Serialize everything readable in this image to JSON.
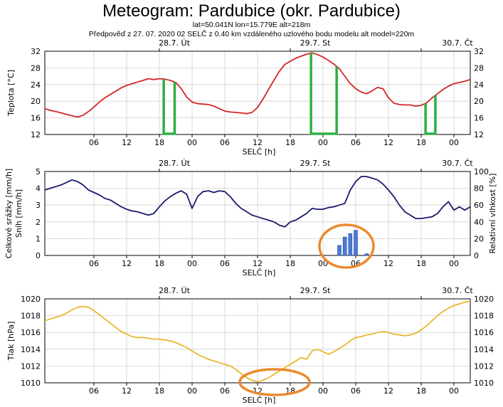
{
  "header": {
    "title": "Meteogram: Pardubice (okr. Pardubice)",
    "coords": "lat=50.041N lon=15.779E alt=218m",
    "forecast_info": "Předpověď z 27. 07. 2020 02 SELČ z 0.40 km vzdáleného uzlového bodu modelu alt  model=220m"
  },
  "day_labels": [
    "28.7. Út",
    "29.7. St",
    "30.7. Čt"
  ],
  "x_tick_labels": [
    "06",
    "12",
    "18",
    "00",
    "06",
    "12",
    "18",
    "00",
    "06",
    "12",
    "18",
    "00"
  ],
  "x_axis_label": "SELČ [h]",
  "colors": {
    "temperature": "#d42626",
    "precip_band": "#2db043",
    "humidity": "#1a1a6e",
    "snow_bars": "#4a7bd6",
    "pressure": "#e8b830",
    "highlight": "#ea8a2e",
    "grid": "#cfcfcf"
  },
  "chart_data": [
    {
      "type": "line",
      "name": "temperature",
      "ylabel": "Teplota [°C]",
      "ylim": [
        12,
        32
      ],
      "yticks": [
        12,
        16,
        20,
        24,
        28,
        32
      ],
      "grid": true,
      "x_unit": "hours since 28.7. 00 SELČ",
      "series": [
        {
          "name": "",
          "x": [
            -3,
            -2,
            -1,
            0,
            1,
            2,
            3,
            4,
            5,
            6,
            7,
            8,
            9,
            10,
            11,
            12,
            13,
            14,
            15,
            16,
            17,
            18,
            19,
            20,
            21,
            22,
            23,
            24,
            25,
            26,
            27,
            28,
            29,
            30,
            31,
            32,
            33,
            34,
            35,
            36,
            37,
            38,
            39,
            40,
            41,
            42,
            43,
            44,
            45,
            46,
            47,
            48,
            49,
            50,
            51,
            52,
            53,
            54,
            55,
            56,
            57,
            58,
            59,
            60,
            61,
            62,
            63,
            64,
            65,
            66,
            67,
            68,
            69,
            70,
            71,
            72,
            73,
            74,
            75
          ],
          "values": [
            18.2,
            17.8,
            17.5,
            17.2,
            16.8,
            16.5,
            16.2,
            16.6,
            17.5,
            18.6,
            19.8,
            20.8,
            21.6,
            22.4,
            23.2,
            23.8,
            24.2,
            24.6,
            25,
            25.4,
            25.2,
            25.4,
            25.3,
            25.0,
            24.5,
            23.0,
            21.0,
            19.8,
            19.4,
            19.3,
            19.2,
            18.8,
            18.2,
            17.6,
            17.4,
            17.3,
            17.2,
            17.0,
            17.3,
            18.5,
            20.5,
            22.8,
            25.0,
            27.2,
            28.8,
            29.6,
            30.3,
            30.8,
            31.3,
            31.6,
            31.2,
            30.6,
            29.8,
            28.9,
            27.8,
            26.0,
            24.2,
            23.0,
            22.2,
            21.8,
            22.5,
            23.3,
            23.0,
            20.8,
            19.5,
            19.2,
            19.1,
            19.1,
            18.8,
            19.0,
            19.6,
            20.8,
            21.8,
            22.8,
            23.6,
            24.2,
            24.5,
            24.8,
            25.2
          ]
        }
      ],
      "precip_markers_x": [
        [
          18.8,
          20.8
        ],
        [
          45.8,
          50.5
        ],
        [
          66.8,
          68.6
        ]
      ]
    },
    {
      "type": "line",
      "name": "precip_humidity",
      "ylabel": "Celkové srážky [mm/h]",
      "ylabel2": "Sníh [mm/h]",
      "ylabel_right": "Relativní vlhkost [%]",
      "ylim": [
        0,
        5
      ],
      "yticks": [
        0,
        1,
        2,
        3,
        4,
        5
      ],
      "ylim_right": [
        0,
        100
      ],
      "yticks_right": [
        0,
        20,
        40,
        60,
        80,
        100
      ],
      "grid": true,
      "series": [
        {
          "name": "",
          "axis": "right",
          "x": [
            -3,
            -2,
            -1,
            0,
            1,
            2,
            3,
            4,
            5,
            6,
            7,
            8,
            9,
            10,
            11,
            12,
            13,
            14,
            15,
            16,
            17,
            18,
            19,
            20,
            21,
            22,
            23,
            24,
            25,
            26,
            27,
            28,
            29,
            30,
            31,
            32,
            33,
            34,
            35,
            36,
            37,
            38,
            39,
            40,
            41,
            42,
            43,
            44,
            45,
            46,
            47,
            48,
            49,
            50,
            51,
            52,
            53,
            54,
            55,
            56,
            57,
            58,
            59,
            60,
            61,
            62,
            63,
            64,
            65,
            66,
            67,
            68,
            69,
            70,
            71,
            72,
            73,
            74,
            75
          ],
          "values": [
            78,
            80,
            82,
            84,
            87,
            90,
            88,
            84,
            78,
            75,
            72,
            68,
            66,
            62,
            58,
            55,
            53,
            52,
            50,
            48,
            50,
            58,
            65,
            70,
            74,
            77,
            73,
            56,
            70,
            76,
            77,
            75,
            77,
            76,
            70,
            62,
            56,
            52,
            48,
            46,
            44,
            42,
            40,
            36,
            34,
            40,
            42,
            46,
            50,
            56,
            55,
            55,
            57,
            58,
            60,
            62,
            78,
            88,
            94,
            94,
            92,
            90,
            85,
            78,
            70,
            60,
            52,
            48,
            44,
            44,
            45,
            46,
            50,
            58,
            64,
            54,
            58,
            54,
            58
          ]
        },
        {
          "name": "",
          "type": "bar",
          "x": [
            51,
            52,
            53,
            54,
            56
          ],
          "values": [
            0.6,
            1.1,
            1.3,
            1.5,
            0.1
          ]
        }
      ]
    },
    {
      "type": "line",
      "name": "pressure",
      "ylabel": "Tlak [hPa]",
      "ylim": [
        1010,
        1020
      ],
      "yticks": [
        1010,
        1012,
        1014,
        1016,
        1018,
        1020
      ],
      "grid": true,
      "series": [
        {
          "name": "",
          "x": [
            -3,
            -2,
            -1,
            0,
            1,
            2,
            3,
            4,
            5,
            6,
            7,
            8,
            9,
            10,
            11,
            12,
            13,
            14,
            15,
            16,
            17,
            18,
            19,
            20,
            21,
            22,
            23,
            24,
            25,
            26,
            27,
            28,
            29,
            30,
            31,
            32,
            33,
            34,
            35,
            36,
            37,
            38,
            39,
            40,
            41,
            42,
            43,
            44,
            45,
            46,
            47,
            48,
            49,
            50,
            51,
            52,
            53,
            54,
            55,
            56,
            57,
            58,
            59,
            60,
            61,
            62,
            63,
            64,
            65,
            66,
            67,
            68,
            69,
            70,
            71,
            72,
            73,
            74,
            75
          ],
          "values": [
            1017.4,
            1017.6,
            1017.8,
            1018.0,
            1018.3,
            1018.7,
            1019.0,
            1019.1,
            1019.0,
            1018.6,
            1018.1,
            1017.6,
            1017.1,
            1016.6,
            1016.1,
            1015.8,
            1015.5,
            1015.4,
            1015.4,
            1015.3,
            1015.2,
            1015.2,
            1015.1,
            1015.0,
            1014.8,
            1014.5,
            1014.2,
            1013.8,
            1013.4,
            1013.1,
            1012.8,
            1012.6,
            1012.4,
            1012.2,
            1012.0,
            1011.6,
            1011.1,
            1010.6,
            1010.3,
            1010.1,
            1010.3,
            1010.6,
            1011.0,
            1011.4,
            1011.8,
            1012.2,
            1012.6,
            1013.0,
            1012.8,
            1013.8,
            1014.0,
            1013.7,
            1013.4,
            1013.7,
            1014.1,
            1014.5,
            1015.0,
            1015.4,
            1015.5,
            1015.7,
            1015.8,
            1016.0,
            1016.1,
            1016.0,
            1015.8,
            1015.7,
            1015.6,
            1015.7,
            1015.9,
            1016.3,
            1016.8,
            1017.4,
            1018.0,
            1018.5,
            1018.9,
            1019.2,
            1019.4,
            1019.6,
            1019.7
          ]
        }
      ]
    }
  ]
}
